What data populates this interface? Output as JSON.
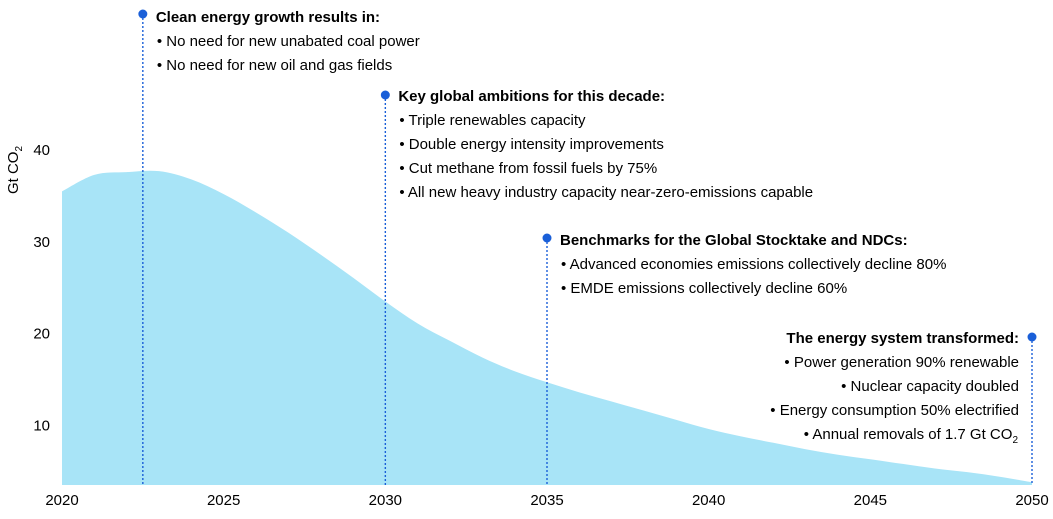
{
  "chart_data": {
    "type": "area",
    "title": "",
    "xlabel": "",
    "ylabel": "Gt CO",
    "ylabel_subscript": "2",
    "xlim": [
      2020,
      2050
    ],
    "ylim": [
      3.5,
      46
    ],
    "x_ticks": [
      "2020",
      "2025",
      "2030",
      "2035",
      "2040",
      "2045",
      "2050"
    ],
    "y_ticks": [
      "10",
      "20",
      "30",
      "40"
    ],
    "grid": false,
    "fill_color": "#a8e4f7",
    "series": [
      {
        "x": [
          2020,
          2021,
          2022,
          2023,
          2024,
          2025,
          2026,
          2027,
          2028,
          2029,
          2030,
          2031,
          2032,
          2033,
          2034,
          2035,
          2036,
          2037,
          2038,
          2039,
          2040,
          2041,
          2042,
          2043,
          2044,
          2045,
          2046,
          2047,
          2048,
          2049,
          2050
        ],
        "values": [
          35.5,
          37.3,
          37.6,
          37.7,
          36.8,
          35.2,
          33.2,
          31.0,
          28.6,
          26.1,
          23.5,
          21.1,
          19.2,
          17.4,
          15.9,
          14.7,
          13.6,
          12.6,
          11.6,
          10.6,
          9.6,
          8.8,
          8.1,
          7.4,
          6.8,
          6.3,
          5.8,
          5.3,
          4.9,
          4.4,
          3.8
        ]
      }
    ],
    "marker_color": "#1a5fd8",
    "annotations": [
      {
        "x": 2022.5,
        "title": "Clean energy growth results in:",
        "items": [
          "No need for new unabated coal power",
          "No need for new oil and gas fields"
        ],
        "align": "left"
      },
      {
        "x": 2030,
        "title": "Key global ambitions for this decade:",
        "items": [
          "Triple renewables capacity",
          "Double energy intensity improvements",
          "Cut methane from fossil fuels by 75%",
          "All new heavy industry capacity near-zero-emissions capable"
        ],
        "align": "left"
      },
      {
        "x": 2035,
        "title": "Benchmarks for the Global Stocktake and NDCs:",
        "items": [
          "Advanced economies emissions collectively decline 80%",
          "EMDE emissions collectively decline 60%"
        ],
        "align": "left"
      },
      {
        "x": 2050,
        "title": "The energy system transformed:",
        "items": [
          "Power generation 90% renewable",
          "Nuclear capacity doubled",
          "Energy consumption 50% electrified",
          "Annual removals of 1.7 Gt CO"
        ],
        "last_item_subscript": "2",
        "align": "right"
      }
    ]
  }
}
